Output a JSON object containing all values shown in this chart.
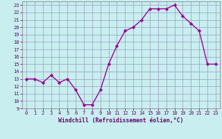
{
  "x": [
    0,
    1,
    2,
    3,
    4,
    5,
    6,
    7,
    8,
    9,
    10,
    11,
    12,
    13,
    14,
    15,
    16,
    17,
    18,
    19,
    20,
    21,
    22,
    23
  ],
  "y": [
    13,
    13,
    12.5,
    13.5,
    12.5,
    13,
    11.5,
    9.5,
    9.5,
    11.5,
    15,
    17.5,
    19.5,
    20,
    21,
    22.5,
    22.5,
    22.5,
    23,
    21.5,
    20.5,
    19.5,
    15,
    15
  ],
  "xlabel": "Windchill (Refroidissement éolien,°C)",
  "xlim": [
    -0.5,
    23.5
  ],
  "ylim": [
    9,
    23.5
  ],
  "yticks": [
    9,
    10,
    11,
    12,
    13,
    14,
    15,
    16,
    17,
    18,
    19,
    20,
    21,
    22,
    23
  ],
  "xticks": [
    0,
    1,
    2,
    3,
    4,
    5,
    6,
    7,
    8,
    9,
    10,
    11,
    12,
    13,
    14,
    15,
    16,
    17,
    18,
    19,
    20,
    21,
    22,
    23
  ],
  "line_color": "#990099",
  "marker": "D",
  "marker_size": 2.2,
  "bg_color": "#c8eef0",
  "grid_color": "#9999bb",
  "label_color": "#660066",
  "line_width": 1.0,
  "xlabel_fontsize": 5.8,
  "tick_fontsize": 5.0
}
